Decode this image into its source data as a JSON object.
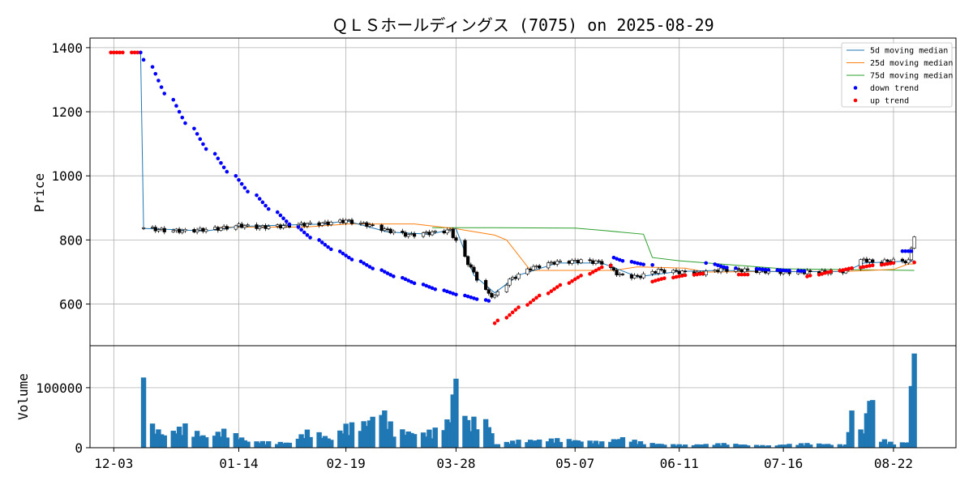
{
  "chart_data": {
    "type": "candlestick",
    "title": "ＱＬＳホールディングス (7075) on 2025-08-29",
    "ylabel_price": "Price",
    "ylabel_volume": "Volume",
    "price_ylim": [
      470,
      1430
    ],
    "price_yticks": [
      "600",
      "800",
      "1000",
      "1200",
      "1400"
    ],
    "price_ytick_values": [
      600,
      800,
      1000,
      1200,
      1400
    ],
    "volume_ylim": [
      0,
      170000
    ],
    "volume_yticks": [
      "0",
      "100000"
    ],
    "volume_ytick_values": [
      0,
      100000
    ],
    "x_range": [
      "2024-11-25",
      "2025-09-12"
    ],
    "x_ticks": [
      {
        "label": "12-03",
        "date": "2024-12-03"
      },
      {
        "label": "01-14",
        "date": "2025-01-14"
      },
      {
        "label": "02-19",
        "date": "2025-02-19"
      },
      {
        "label": "03-28",
        "date": "2025-03-28"
      },
      {
        "label": "05-07",
        "date": "2025-05-07"
      },
      {
        "label": "06-11",
        "date": "2025-06-11"
      },
      {
        "label": "07-16",
        "date": "2025-07-16"
      },
      {
        "label": "08-22",
        "date": "2025-08-22"
      }
    ],
    "grid": true,
    "legend_position": "top-right",
    "legend": [
      {
        "label": " 5d moving median",
        "kind": "line",
        "color": "#1f77b4"
      },
      {
        "label": "25d moving median",
        "kind": "line",
        "color": "#ff7f0e"
      },
      {
        "label": "75d moving median",
        "kind": "line",
        "color": "#2ca02c"
      },
      {
        "label": "down trend",
        "kind": "dot",
        "color": "#0000ff"
      },
      {
        "label": "up trend",
        "kind": "dot",
        "color": "#ff0000"
      }
    ],
    "colors": {
      "up": "#ffffff",
      "down": "#000000",
      "volume": "#1f77b4",
      "grid": "#b0b0b0"
    },
    "price_anchors": [
      [
        "2024-12-13",
        838
      ],
      [
        "2024-12-20",
        830
      ],
      [
        "2024-12-27",
        828
      ],
      [
        "2025-01-08",
        836
      ],
      [
        "2025-01-14",
        845
      ],
      [
        "2025-01-21",
        840
      ],
      [
        "2025-01-28",
        843
      ],
      [
        "2025-02-04",
        848
      ],
      [
        "2025-02-12",
        852
      ],
      [
        "2025-02-19",
        860
      ],
      [
        "2025-02-26",
        848
      ],
      [
        "2025-03-05",
        830
      ],
      [
        "2025-03-12",
        815
      ],
      [
        "2025-03-19",
        822
      ],
      [
        "2025-03-26",
        830
      ],
      [
        "2025-03-31",
        745
      ],
      [
        "2025-04-04",
        680
      ],
      [
        "2025-04-08",
        630
      ],
      [
        "2025-04-10",
        625
      ],
      [
        "2025-04-15",
        675
      ],
      [
        "2025-04-22",
        712
      ],
      [
        "2025-04-30",
        730
      ],
      [
        "2025-05-09",
        735
      ],
      [
        "2025-05-16",
        730
      ],
      [
        "2025-05-22",
        690
      ],
      [
        "2025-05-28",
        685
      ],
      [
        "2025-06-04",
        705
      ],
      [
        "2025-06-11",
        700
      ],
      [
        "2025-06-18",
        695
      ],
      [
        "2025-06-25",
        708
      ],
      [
        "2025-07-02",
        706
      ],
      [
        "2025-07-09",
        703
      ],
      [
        "2025-07-16",
        700
      ],
      [
        "2025-07-23",
        700
      ],
      [
        "2025-07-30",
        700
      ],
      [
        "2025-08-06",
        703
      ],
      [
        "2025-08-12",
        740
      ],
      [
        "2025-08-15",
        730
      ],
      [
        "2025-08-22",
        735
      ],
      [
        "2025-08-27",
        733
      ],
      [
        "2025-08-29",
        815
      ]
    ],
    "ma5": [
      [
        "2024-12-12",
        1385
      ],
      [
        "2024-12-13",
        836
      ],
      [
        "2025-01-03",
        828
      ],
      [
        "2025-01-14",
        842
      ],
      [
        "2025-02-12",
        850
      ],
      [
        "2025-02-19",
        860
      ],
      [
        "2025-03-05",
        825
      ],
      [
        "2025-03-19",
        818
      ],
      [
        "2025-03-28",
        835
      ],
      [
        "2025-04-03",
        690
      ],
      [
        "2025-04-10",
        635
      ],
      [
        "2025-04-18",
        690
      ],
      [
        "2025-05-01",
        728
      ],
      [
        "2025-05-16",
        728
      ],
      [
        "2025-05-28",
        685
      ],
      [
        "2025-06-11",
        702
      ],
      [
        "2025-06-25",
        705
      ],
      [
        "2025-07-16",
        701
      ],
      [
        "2025-08-06",
        702
      ],
      [
        "2025-08-12",
        728
      ],
      [
        "2025-08-29",
        735
      ]
    ],
    "ma25": [
      [
        "2025-01-08",
        840
      ],
      [
        "2025-02-05",
        840
      ],
      [
        "2025-02-20",
        850
      ],
      [
        "2025-03-14",
        850
      ],
      [
        "2025-03-28",
        835
      ],
      [
        "2025-04-10",
        815
      ],
      [
        "2025-04-14",
        800
      ],
      [
        "2025-04-22",
        705
      ],
      [
        "2025-05-20",
        705
      ],
      [
        "2025-05-28",
        716
      ],
      [
        "2025-06-13",
        712
      ],
      [
        "2025-06-20",
        700
      ],
      [
        "2025-07-16",
        702
      ],
      [
        "2025-08-06",
        702
      ],
      [
        "2025-08-22",
        708
      ],
      [
        "2025-08-27",
        725
      ],
      [
        "2025-08-29",
        725
      ]
    ],
    "ma75": [
      [
        "2025-03-20",
        838
      ],
      [
        "2025-04-10",
        838
      ],
      [
        "2025-05-07",
        837
      ],
      [
        "2025-05-16",
        830
      ],
      [
        "2025-05-30",
        818
      ],
      [
        "2025-06-02",
        745
      ],
      [
        "2025-06-11",
        735
      ],
      [
        "2025-06-25",
        725
      ],
      [
        "2025-07-16",
        710
      ],
      [
        "2025-08-29",
        705
      ]
    ],
    "down_trend_segments": [
      {
        "start": "2024-12-12",
        "end": "2025-04-08",
        "from": 1385,
        "to": 610,
        "k": 2.2
      },
      {
        "start": "2025-05-20",
        "end": "2025-06-02",
        "from": 745,
        "to": 722,
        "k": 1.0
      },
      {
        "start": "2025-06-20",
        "end": "2025-06-30",
        "from": 728,
        "to": 712,
        "k": 1.0
      },
      {
        "start": "2025-07-07",
        "end": "2025-07-23",
        "from": 710,
        "to": 703,
        "k": 1.0
      },
      {
        "start": "2025-08-25",
        "end": "2025-08-28",
        "from": 765,
        "to": 765,
        "k": 1.0
      }
    ],
    "up_trend_segments": [
      {
        "start": "2024-12-02",
        "end": "2024-12-11",
        "from": 1385,
        "to": 1385,
        "k": 1.0
      },
      {
        "start": "2025-04-10",
        "end": "2025-05-19",
        "from": 540,
        "to": 720,
        "k": 0.6
      },
      {
        "start": "2025-06-02",
        "end": "2025-06-19",
        "from": 670,
        "to": 695,
        "k": 1.0
      },
      {
        "start": "2025-07-01",
        "end": "2025-07-06",
        "from": 692,
        "to": 692,
        "k": 1.0
      },
      {
        "start": "2025-07-24",
        "end": "2025-08-22",
        "from": 686,
        "to": 728,
        "k": 0.8
      },
      {
        "start": "2025-08-29",
        "end": "2025-08-29",
        "from": 730,
        "to": 730,
        "k": 1.0
      }
    ],
    "volume_anchors": [
      [
        "2024-12-13",
        117000
      ],
      [
        "2024-12-16",
        30000
      ],
      [
        "2024-12-20",
        18000
      ],
      [
        "2024-12-27",
        30000
      ],
      [
        "2025-01-03",
        15000
      ],
      [
        "2025-01-10",
        25000
      ],
      [
        "2025-01-17",
        9000
      ],
      [
        "2025-01-24",
        8000
      ],
      [
        "2025-01-31",
        7000
      ],
      [
        "2025-02-07",
        25000
      ],
      [
        "2025-02-14",
        12000
      ],
      [
        "2025-02-19",
        30000
      ],
      [
        "2025-02-26",
        35000
      ],
      [
        "2025-03-03",
        55000
      ],
      [
        "2025-03-07",
        25000
      ],
      [
        "2025-03-12",
        22000
      ],
      [
        "2025-03-17",
        20000
      ],
      [
        "2025-03-21",
        25000
      ],
      [
        "2025-03-26",
        40000
      ],
      [
        "2025-03-28",
        115000
      ],
      [
        "2025-04-01",
        35000
      ],
      [
        "2025-04-04",
        40000
      ],
      [
        "2025-04-08",
        35000
      ],
      [
        "2025-04-10",
        5000
      ],
      [
        "2025-04-18",
        10000
      ],
      [
        "2025-05-02",
        12000
      ],
      [
        "2025-05-09",
        10000
      ],
      [
        "2025-05-16",
        8000
      ],
      [
        "2025-05-23",
        14000
      ],
      [
        "2025-05-30",
        7000
      ],
      [
        "2025-06-06",
        5000
      ],
      [
        "2025-06-13",
        4000
      ],
      [
        "2025-06-20",
        5000
      ],
      [
        "2025-06-27",
        6000
      ],
      [
        "2025-07-04",
        4000
      ],
      [
        "2025-07-11",
        3000
      ],
      [
        "2025-07-18",
        5000
      ],
      [
        "2025-07-25",
        6000
      ],
      [
        "2025-08-01",
        5000
      ],
      [
        "2025-08-06",
        4000
      ],
      [
        "2025-08-08",
        62000
      ],
      [
        "2025-08-12",
        20000
      ],
      [
        "2025-08-14",
        78000
      ],
      [
        "2025-08-18",
        12000
      ],
      [
        "2025-08-22",
        6000
      ],
      [
        "2025-08-27",
        8000
      ],
      [
        "2025-08-29",
        157000
      ]
    ]
  }
}
